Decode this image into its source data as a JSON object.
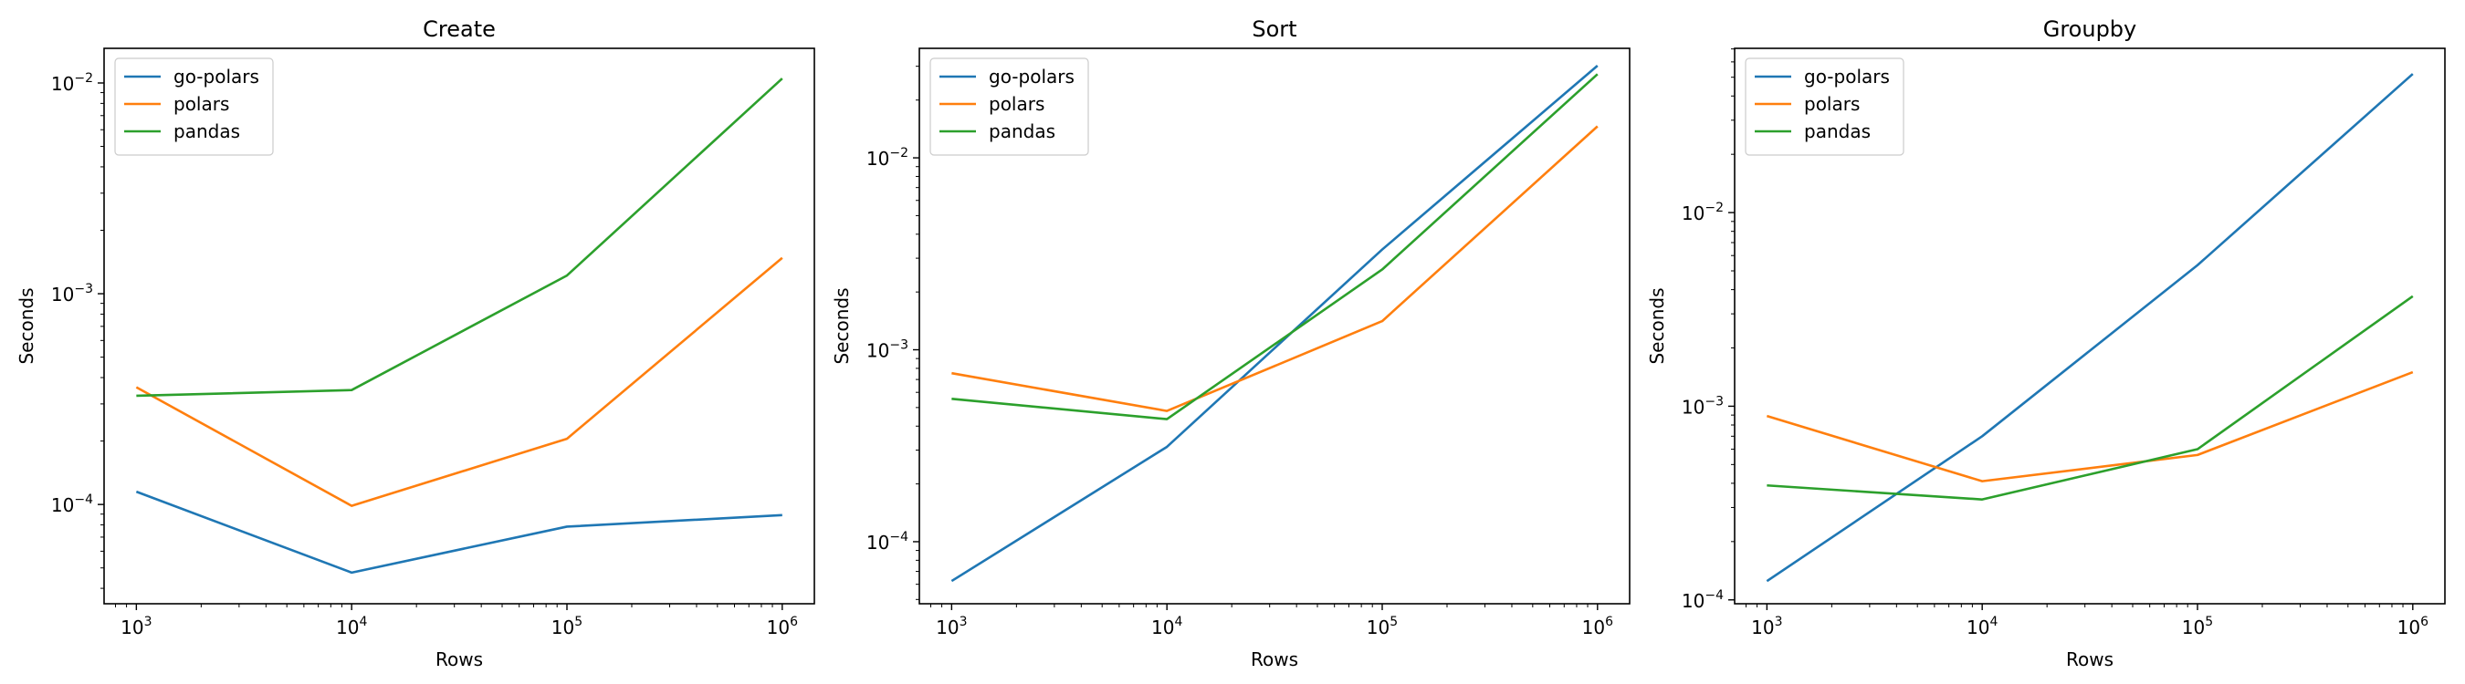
{
  "chart_data": [
    {
      "type": "line",
      "title": "Create",
      "xlabel": "Rows",
      "ylabel": "Seconds",
      "xscale": "log",
      "yscale": "log",
      "xlim": [
        708,
        1410000
      ],
      "ylim": [
        3.38e-05,
        0.0146
      ],
      "x": [
        1000,
        10000,
        100000,
        1000000
      ],
      "x_ticks": [
        {
          "value": 1000,
          "base": "10",
          "exp": "3"
        },
        {
          "value": 10000,
          "base": "10",
          "exp": "4"
        },
        {
          "value": 100000,
          "base": "10",
          "exp": "5"
        },
        {
          "value": 1000000,
          "base": "10",
          "exp": "6"
        }
      ],
      "y_ticks": [
        {
          "value": 0.0001,
          "base": "10",
          "exp": "−4"
        },
        {
          "value": 0.001,
          "base": "10",
          "exp": "−3"
        },
        {
          "value": 0.01,
          "base": "10",
          "exp": "−2"
        }
      ],
      "legend_position": "upper-left",
      "grid": false,
      "series": [
        {
          "name": "go-polars",
          "color": "#1f77b4",
          "values": [
            0.000115,
            4.75e-05,
            7.85e-05,
            8.9e-05
          ]
        },
        {
          "name": "polars",
          "color": "#ff7f0e",
          "values": [
            0.00036,
            9.85e-05,
            0.000205,
            0.00148
          ]
        },
        {
          "name": "pandas",
          "color": "#2ca02c",
          "values": [
            0.000328,
            0.000349,
            0.00122,
            0.0105
          ]
        }
      ]
    },
    {
      "type": "line",
      "title": "Sort",
      "xlabel": "Rows",
      "ylabel": "Seconds",
      "xscale": "log",
      "yscale": "log",
      "xlim": [
        708,
        1410000
      ],
      "ylim": [
        4.75e-05,
        0.0372
      ],
      "x": [
        1000,
        10000,
        100000,
        1000000
      ],
      "x_ticks": [
        {
          "value": 1000,
          "base": "10",
          "exp": "3"
        },
        {
          "value": 10000,
          "base": "10",
          "exp": "4"
        },
        {
          "value": 100000,
          "base": "10",
          "exp": "5"
        },
        {
          "value": 1000000,
          "base": "10",
          "exp": "6"
        }
      ],
      "y_ticks": [
        {
          "value": 0.0001,
          "base": "10",
          "exp": "−4"
        },
        {
          "value": 0.001,
          "base": "10",
          "exp": "−3"
        },
        {
          "value": 0.01,
          "base": "10",
          "exp": "−2"
        }
      ],
      "legend_position": "upper-left",
      "grid": false,
      "series": [
        {
          "name": "go-polars",
          "color": "#1f77b4",
          "values": [
            6.24e-05,
            0.000312,
            0.00333,
            0.0302
          ]
        },
        {
          "name": "polars",
          "color": "#ff7f0e",
          "values": [
            0.000755,
            0.00048,
            0.00141,
            0.0146
          ]
        },
        {
          "name": "pandas",
          "color": "#2ca02c",
          "values": [
            0.000555,
            0.000435,
            0.00262,
            0.0273
          ]
        }
      ]
    },
    {
      "type": "line",
      "title": "Groupby",
      "xlabel": "Rows",
      "ylabel": "Seconds",
      "xscale": "log",
      "yscale": "log",
      "xlim": [
        708,
        1410000
      ],
      "ylim": [
        9.55e-05,
        0.0705
      ],
      "x": [
        1000,
        10000,
        100000,
        1000000
      ],
      "x_ticks": [
        {
          "value": 1000,
          "base": "10",
          "exp": "3"
        },
        {
          "value": 10000,
          "base": "10",
          "exp": "4"
        },
        {
          "value": 100000,
          "base": "10",
          "exp": "5"
        },
        {
          "value": 1000000,
          "base": "10",
          "exp": "6"
        }
      ],
      "y_ticks": [
        {
          "value": 0.0001,
          "base": "10",
          "exp": "−4"
        },
        {
          "value": 0.001,
          "base": "10",
          "exp": "−3"
        },
        {
          "value": 0.01,
          "base": "10",
          "exp": "−2"
        }
      ],
      "legend_position": "upper-left",
      "grid": false,
      "series": [
        {
          "name": "go-polars",
          "color": "#1f77b4",
          "values": [
            0.000125,
            0.0007,
            0.00535,
            0.052
          ]
        },
        {
          "name": "polars",
          "color": "#ff7f0e",
          "values": [
            0.00089,
            0.00041,
            0.00056,
            0.0015
          ]
        },
        {
          "name": "pandas",
          "color": "#2ca02c",
          "values": [
            0.00039,
            0.00033,
            0.0006,
            0.0037
          ]
        }
      ]
    }
  ]
}
